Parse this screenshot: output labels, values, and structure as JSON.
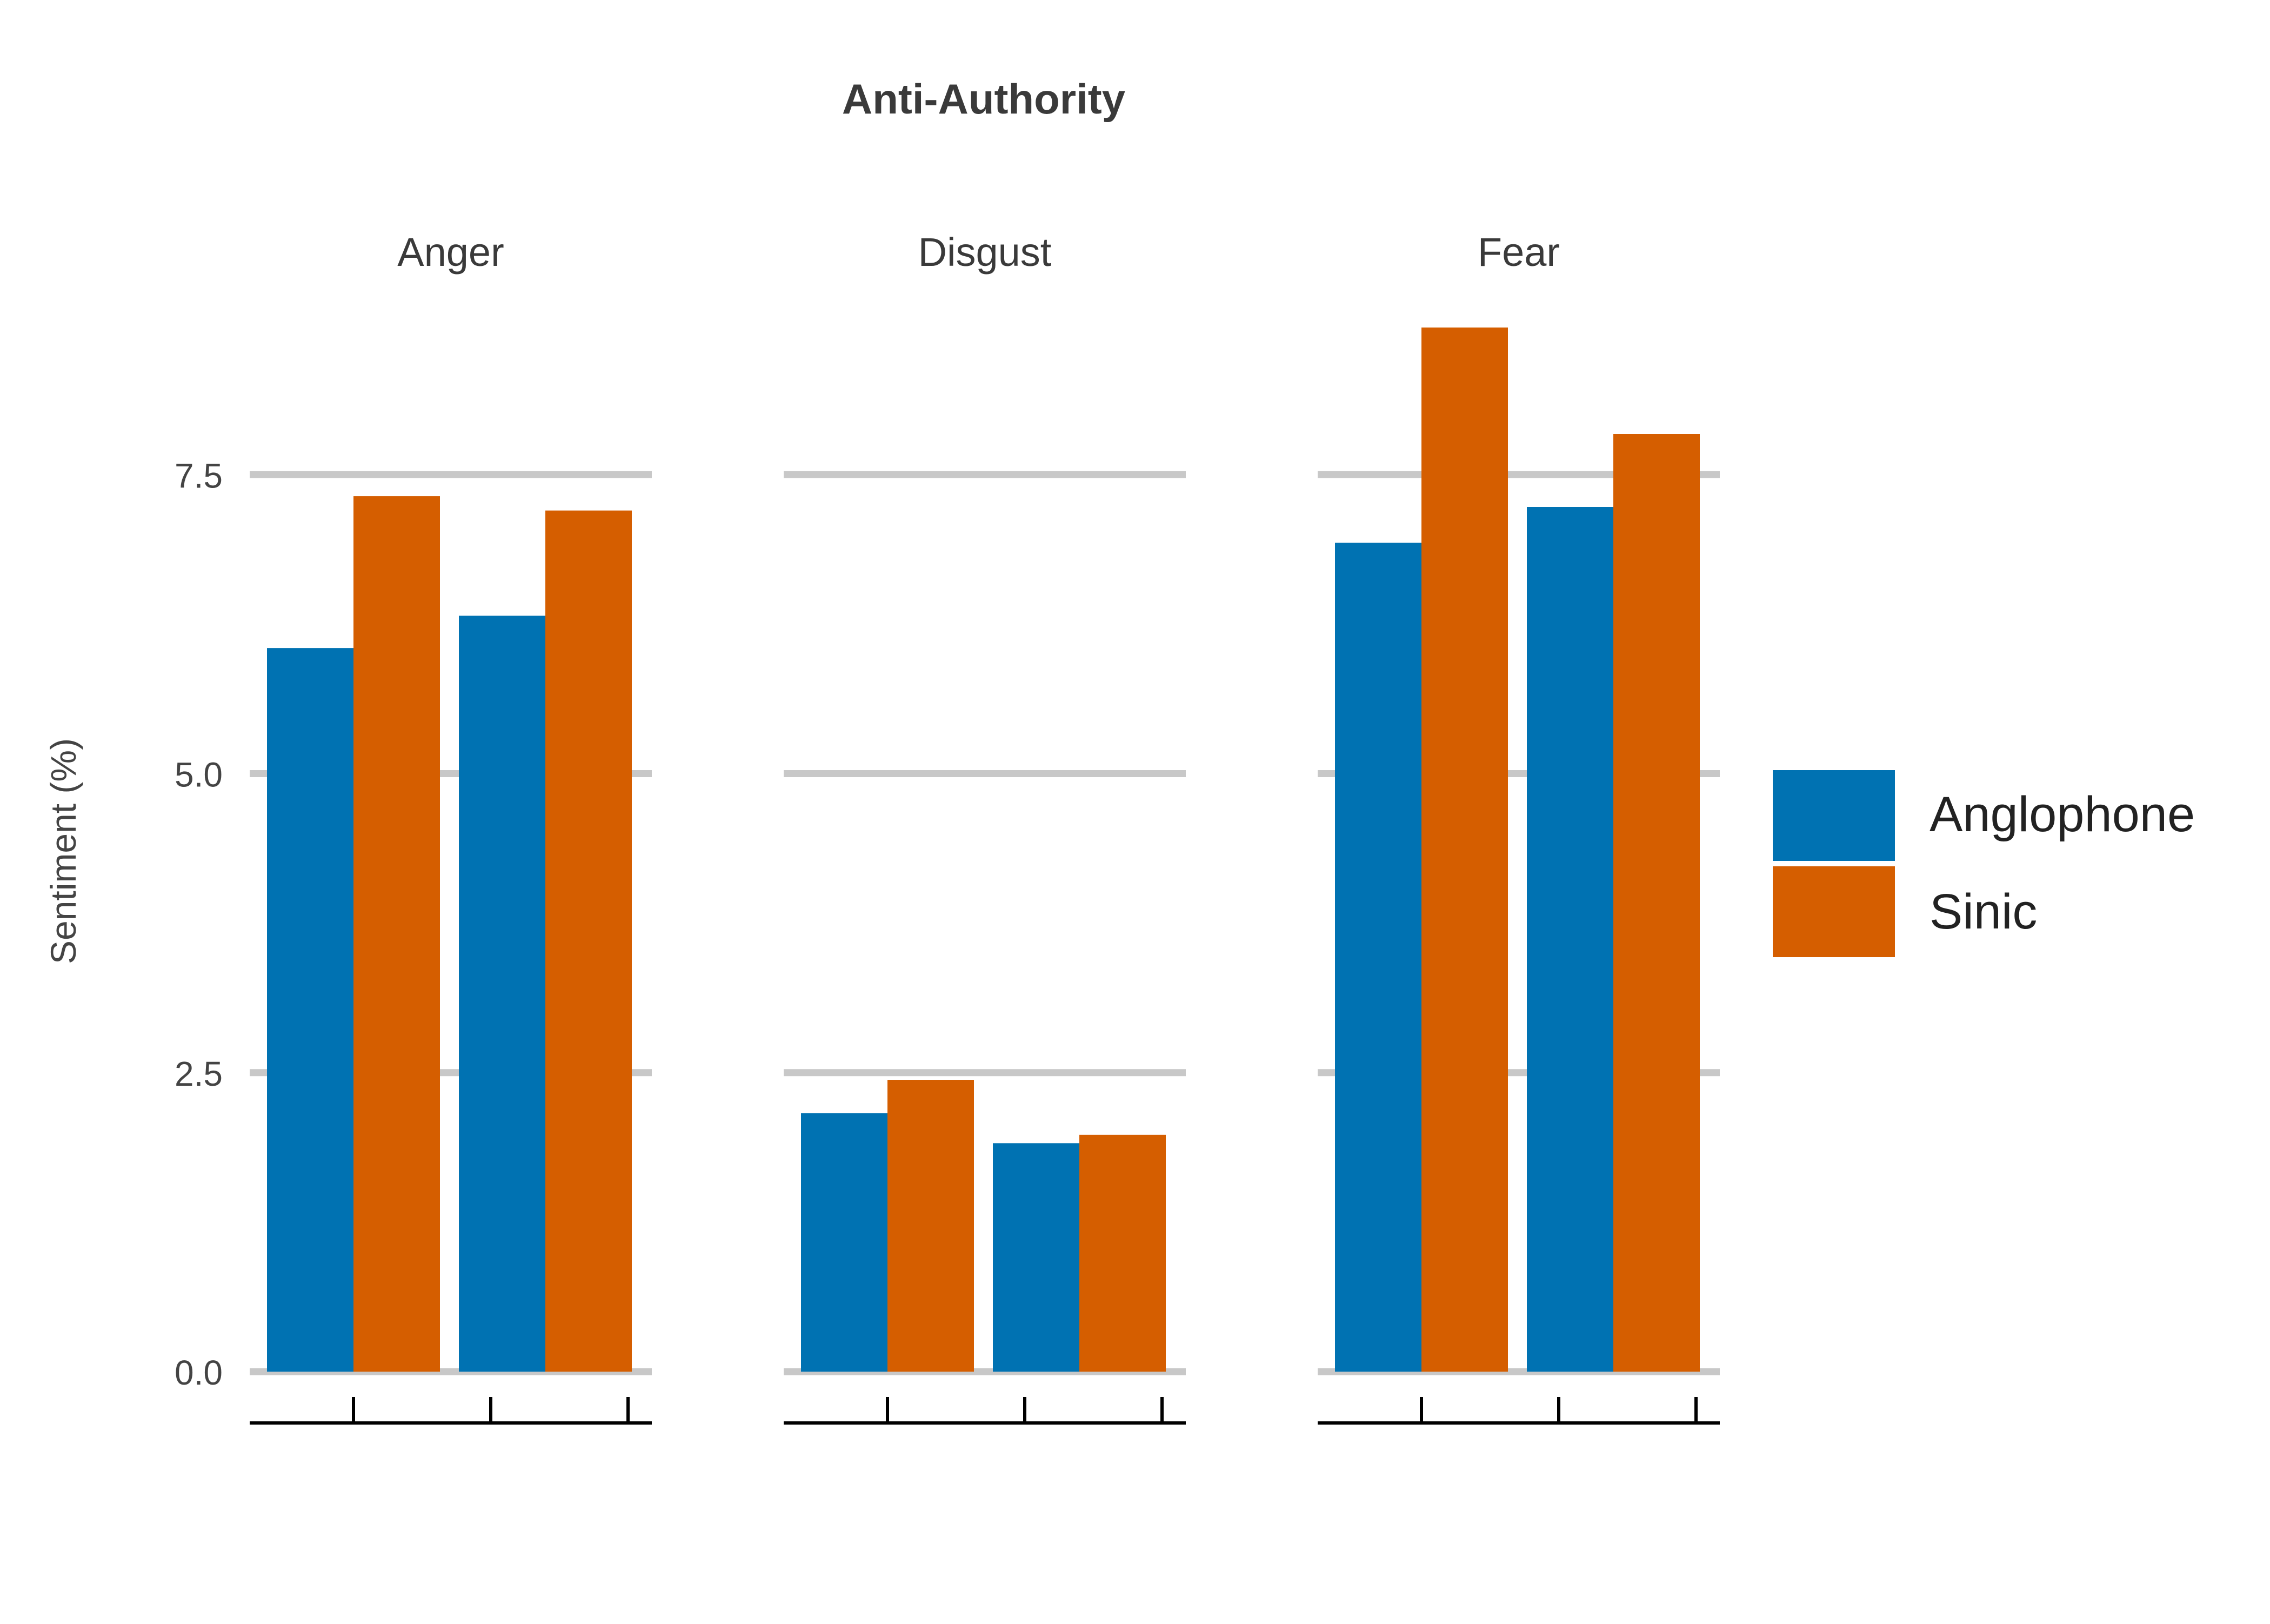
{
  "chart_data": {
    "type": "bar",
    "title": "Anti-Authority",
    "ylabel": "Sentiment (%)",
    "xlabel": "",
    "ylim": [
      0,
      9.2
    ],
    "yticks": [
      "0.0",
      "2.5",
      "5.0",
      "7.5"
    ],
    "ytick_values": [
      0,
      2.5,
      5.0,
      7.5
    ],
    "grid": true,
    "legend_position": "right",
    "series": [
      {
        "name": "Anglophone",
        "color": "#0072B2"
      },
      {
        "name": "Sinic",
        "color": "#D55E00"
      }
    ],
    "panels": [
      {
        "label": "Anger",
        "groups": [
          {
            "values": [
              6.05,
              7.32
            ]
          },
          {
            "values": [
              6.32,
              7.2
            ]
          }
        ]
      },
      {
        "label": "Disgust",
        "groups": [
          {
            "values": [
              2.16,
              2.44
            ]
          },
          {
            "values": [
              1.91,
              1.98
            ]
          }
        ]
      },
      {
        "label": "Fear",
        "groups": [
          {
            "values": [
              6.93,
              8.73
            ]
          },
          {
            "values": [
              7.23,
              7.84
            ]
          }
        ]
      }
    ]
  }
}
